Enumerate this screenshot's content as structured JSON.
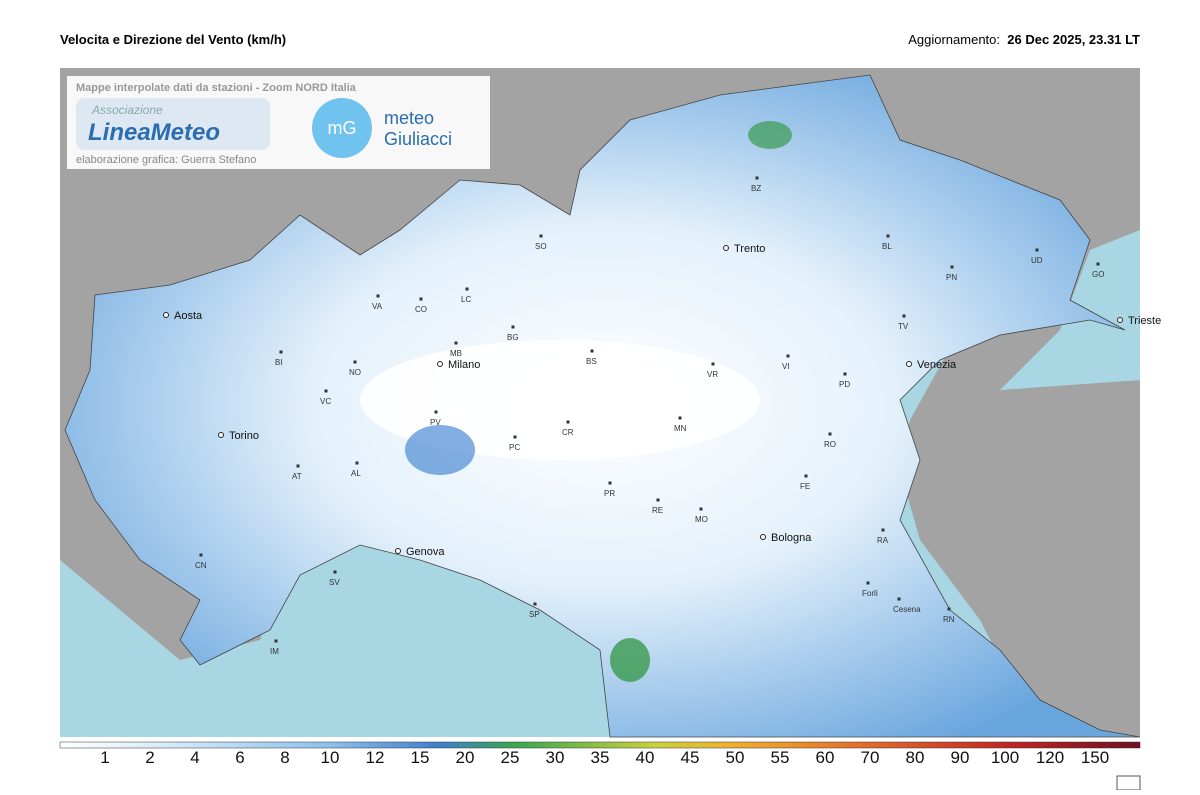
{
  "header": {
    "title": "Velocita e Direzione del Vento  (km/h)",
    "update_label": "Aggiornamento:",
    "update_time": "26 Dec 2025, 23.31 LT"
  },
  "logo_box": {
    "caption": "Mappe interpolate dati da stazioni - Zoom NORD Italia",
    "association": "Associazione",
    "brand": "LineaMeteo",
    "credit": "elaborazione grafica: Guerra Stefano",
    "mg_icon": "mG",
    "mg_line1": "meteo",
    "mg_line2": "Giuliacci"
  },
  "map": {
    "cities": [
      "Aosta",
      "Torino",
      "Milano",
      "Genova",
      "Trento",
      "Bologna",
      "Venezia",
      "Trieste",
      "BZ",
      "SO",
      "VA",
      "CO",
      "LC",
      "BI",
      "NO",
      "MB",
      "BG",
      "BS",
      "VC",
      "PV",
      "CR",
      "PC",
      "MN",
      "VR",
      "VI",
      "PD",
      "TV",
      "BL",
      "PN",
      "UD",
      "GO",
      "RO",
      "FE",
      "RA",
      "Forlì",
      "Cesena",
      "RN",
      "AT",
      "AL",
      "CN",
      "SV",
      "IM",
      "SP",
      "PR",
      "RE",
      "MO"
    ]
  },
  "legend": {
    "values": [
      1,
      2,
      4,
      6,
      8,
      10,
      12,
      15,
      20,
      25,
      30,
      35,
      40,
      45,
      50,
      55,
      60,
      70,
      80,
      90,
      100,
      120,
      150
    ]
  }
}
